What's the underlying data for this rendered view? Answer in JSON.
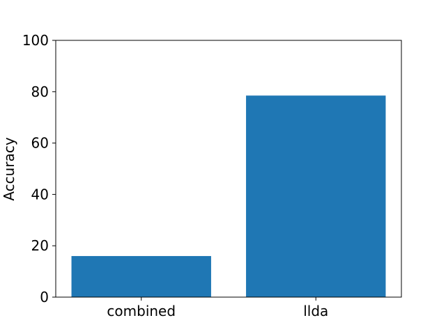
{
  "chart_data": {
    "type": "bar",
    "title": "",
    "xlabel": "",
    "ylabel": "Accuracy",
    "categories": [
      "combined",
      "llda"
    ],
    "values": [
      16,
      78.5
    ],
    "ylim": [
      0,
      100
    ],
    "yticks": [
      0,
      20,
      40,
      60,
      80,
      100
    ],
    "grid": false,
    "legend": "none",
    "bar_color": "#1f77b4"
  }
}
